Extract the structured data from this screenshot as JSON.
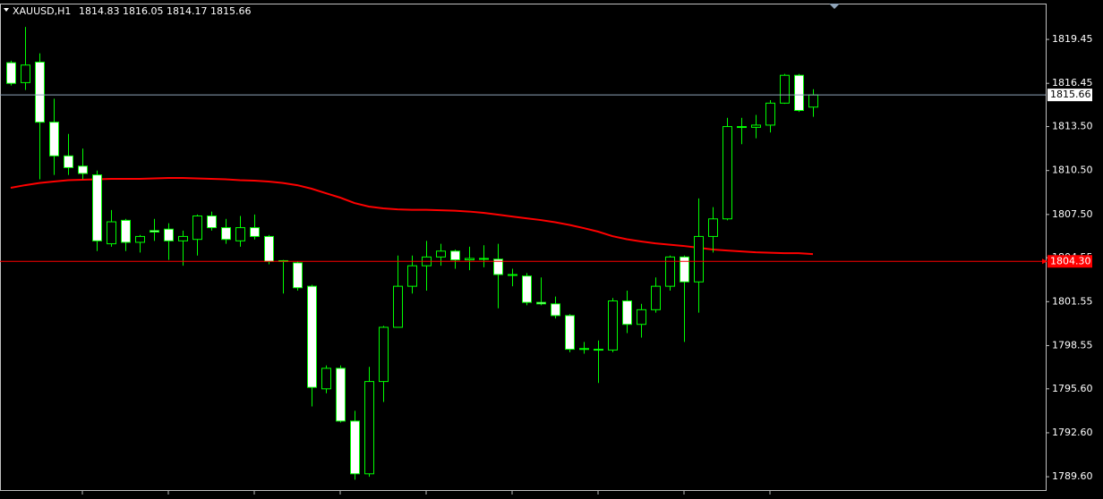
{
  "chart_data": {
    "type": "candlestick",
    "title": "XAUUSD,H1",
    "open": [
      1817.86,
      1816.5,
      1817.9,
      1813.8,
      1811.5,
      1810.8,
      1810.2,
      1805.5,
      1807.1,
      1805.6,
      1806.4,
      1806.5,
      1805.7,
      1805.8,
      1807.4,
      1806.6,
      1805.7,
      1806.6,
      1806.0,
      1804.3,
      1804.2,
      1802.6,
      1795.6,
      1797.0,
      1793.4,
      1789.8,
      1796.1,
      1799.8,
      1802.6,
      1804.0,
      1804.6,
      1805.0,
      1804.4,
      1804.5,
      1804.45,
      1803.4,
      1803.3,
      1801.5,
      1801.4,
      1800.6,
      1798.35,
      1798.3,
      1798.25,
      1801.6,
      1800.0,
      1801.0,
      1802.6,
      1804.6,
      1802.9,
      1806.0,
      1807.2,
      1813.45,
      1813.45,
      1813.6,
      1815.1,
      1817.0,
      1814.83
    ],
    "high": [
      1818.0,
      1820.3,
      1818.5,
      1815.4,
      1813.0,
      1812.0,
      1810.5,
      1807.8,
      1807.2,
      1806.1,
      1807.2,
      1806.9,
      1806.4,
      1807.5,
      1807.7,
      1807.2,
      1807.4,
      1807.5,
      1806.1,
      1804.4,
      1804.3,
      1802.7,
      1797.2,
      1797.2,
      1794.1,
      1797.1,
      1799.9,
      1804.7,
      1804.7,
      1805.7,
      1805.5,
      1805.1,
      1805.3,
      1805.4,
      1805.5,
      1803.8,
      1803.5,
      1803.2,
      1801.9,
      1800.7,
      1798.8,
      1798.9,
      1801.8,
      1802.3,
      1801.4,
      1803.2,
      1804.7,
      1804.7,
      1808.6,
      1808.0,
      1814.1,
      1814.1,
      1814.3,
      1815.3,
      1817.1,
      1817.1,
      1816.05
    ],
    "low": [
      1816.3,
      1816.0,
      1809.9,
      1810.2,
      1810.2,
      1809.9,
      1805.0,
      1805.3,
      1805.0,
      1804.9,
      1805.7,
      1804.4,
      1804.0,
      1804.7,
      1806.4,
      1805.5,
      1805.3,
      1805.8,
      1804.1,
      1802.1,
      1802.3,
      1794.4,
      1795.3,
      1793.3,
      1789.4,
      1789.6,
      1794.7,
      1799.8,
      1802.1,
      1802.3,
      1804.0,
      1803.8,
      1803.7,
      1803.9,
      1801.1,
      1802.6,
      1801.3,
      1801.3,
      1800.4,
      1798.1,
      1798.0,
      1796.0,
      1798.1,
      1799.4,
      1799.1,
      1800.8,
      1802.3,
      1798.8,
      1800.8,
      1804.9,
      1807.1,
      1812.3,
      1812.7,
      1813.1,
      1815.05,
      1814.5,
      1814.17
    ],
    "close": [
      1816.45,
      1817.7,
      1813.8,
      1811.5,
      1810.7,
      1810.3,
      1805.7,
      1807.0,
      1805.6,
      1806.0,
      1806.3,
      1805.7,
      1806.0,
      1807.4,
      1806.6,
      1805.8,
      1806.6,
      1806.0,
      1804.3,
      1804.35,
      1802.5,
      1795.7,
      1797.0,
      1793.4,
      1789.8,
      1796.1,
      1799.8,
      1802.6,
      1804.0,
      1804.6,
      1805.0,
      1804.4,
      1804.5,
      1804.45,
      1803.4,
      1803.35,
      1801.5,
      1801.4,
      1800.6,
      1798.3,
      1798.3,
      1798.25,
      1801.6,
      1800.0,
      1801.0,
      1802.6,
      1804.6,
      1802.9,
      1806.0,
      1807.2,
      1813.5,
      1813.5,
      1813.6,
      1815.1,
      1817.0,
      1814.6,
      1815.66
    ],
    "up_color": "#000000",
    "down_color": "#ffffff",
    "wick_color": "#00ff00",
    "ma": {
      "color": "#ff0000",
      "values": [
        1809.32,
        1809.5,
        1809.65,
        1809.75,
        1809.84,
        1809.87,
        1809.9,
        1809.93,
        1809.93,
        1809.93,
        1809.96,
        1809.99,
        1809.99,
        1809.96,
        1809.93,
        1809.9,
        1809.84,
        1809.81,
        1809.75,
        1809.65,
        1809.5,
        1809.26,
        1808.95,
        1808.65,
        1808.28,
        1808.04,
        1807.92,
        1807.85,
        1807.82,
        1807.82,
        1807.79,
        1807.76,
        1807.7,
        1807.61,
        1807.49,
        1807.36,
        1807.24,
        1807.12,
        1806.97,
        1806.79,
        1806.57,
        1806.33,
        1806.02,
        1805.81,
        1805.66,
        1805.53,
        1805.44,
        1805.35,
        1805.23,
        1805.11,
        1805.04,
        1804.98,
        1804.92,
        1804.89,
        1804.86,
        1804.86,
        1804.8
      ]
    },
    "bid": 1815.66,
    "bid_color": "#8ea3b8",
    "level": {
      "value": 1804.3,
      "label": "1804.30",
      "color": "#ff0000"
    },
    "ylim": [
      1788.69,
      1822.14
    ],
    "yticks": [
      1819.45,
      1816.45,
      {
        "value": 1813.5,
        "label": "1813.50"
      },
      {
        "value": 1810.5,
        "label": "1810.50"
      },
      {
        "value": 1807.5,
        "label": "1807.50"
      },
      1804.55,
      1801.55,
      1798.55,
      {
        "value": 1795.6,
        "label": "1795.60"
      },
      {
        "value": 1792.6,
        "label": "1792.60"
      },
      {
        "value": 1789.6,
        "label": "1789.60"
      }
    ]
  }
}
